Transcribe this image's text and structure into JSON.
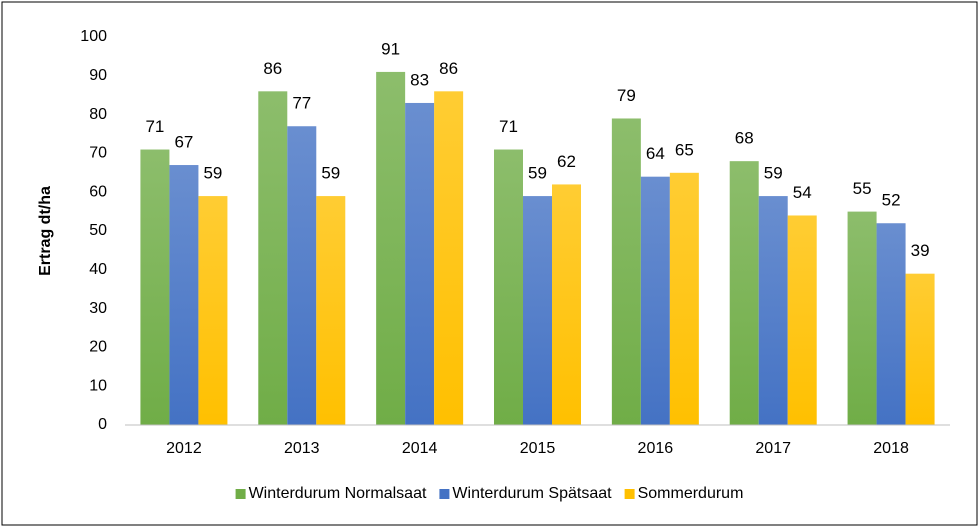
{
  "chart_data": {
    "type": "bar",
    "y_label": "Ertrag dt/ha",
    "categories": [
      "2012",
      "2013",
      "2014",
      "2015",
      "2016",
      "2017",
      "2018"
    ],
    "series": [
      {
        "name": "Winterdurum Normalsaat",
        "color": "#70ad47",
        "values": [
          71,
          86,
          91,
          71,
          79,
          68,
          55
        ]
      },
      {
        "name": "Winterdurum Spätsaat",
        "color": "#4472c4",
        "values": [
          67,
          77,
          83,
          59,
          64,
          59,
          52
        ]
      },
      {
        "name": "Sommerdurum",
        "color": "#ffc000",
        "values": [
          59,
          59,
          86,
          62,
          65,
          54,
          39
        ]
      }
    ],
    "ylim": [
      0,
      100
    ],
    "yticks": [
      0,
      10,
      20,
      30,
      40,
      50,
      60,
      70,
      80,
      90,
      100
    ],
    "grid": false,
    "legend": "bottom"
  }
}
